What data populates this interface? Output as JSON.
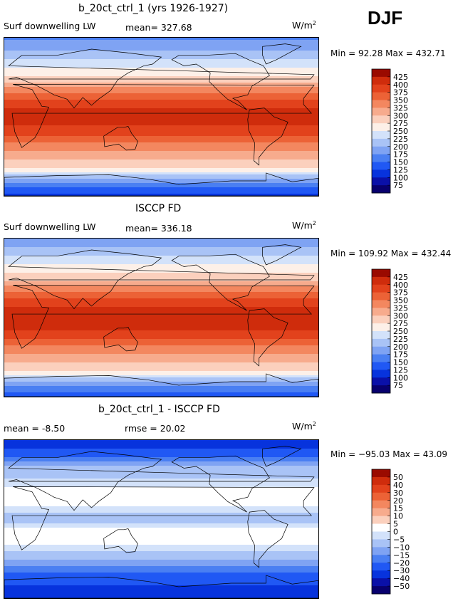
{
  "season": "DJF",
  "palette": {
    "model": [
      "#08006e",
      "#0a10a8",
      "#0733dd",
      "#2058f4",
      "#4a7ff2",
      "#7fa3f3",
      "#a9c3f6",
      "#d3e2fa",
      "#fdf0e8",
      "#fbd0bd",
      "#f7ab8d",
      "#f3875f",
      "#ec6236",
      "#e2421c",
      "#cf2c0c",
      "#9a0a00"
    ],
    "diff": [
      "#08006e",
      "#0a10a8",
      "#0733dd",
      "#2058f4",
      "#4a7ff2",
      "#7fa3f3",
      "#a9c3f6",
      "#d3e2fa",
      "#ffffff",
      "#fbd0bd",
      "#f7ab8d",
      "#f3875f",
      "#ec6236",
      "#e2421c",
      "#cf2c0c",
      "#9a0a00"
    ]
  },
  "panels": [
    {
      "title": "b_20ct_ctrl_1 (yrs 1926-1927)",
      "variable": "Surf downwelling LW",
      "stat_text": "mean=  327.68",
      "units": "W/m",
      "units_exp": "2",
      "minmax": "Min =  92.28  Max = 432.71",
      "colorbar_labels": [
        "425",
        "400",
        "375",
        "350",
        "325",
        "300",
        "275",
        "250",
        "225",
        "200",
        "175",
        "150",
        "125",
        "100",
        "75"
      ],
      "palette": "model"
    },
    {
      "title": "ISCCP FD",
      "variable": "Surf downwelling LW",
      "stat_text": "mean=  336.18",
      "units": "W/m",
      "units_exp": "2",
      "minmax": "Min = 109.92  Max = 432.44",
      "colorbar_labels": [
        "425",
        "400",
        "375",
        "350",
        "325",
        "300",
        "275",
        "250",
        "225",
        "200",
        "175",
        "150",
        "125",
        "100",
        "75"
      ],
      "palette": "model"
    },
    {
      "title": "b_20ct_ctrl_1 - ISCCP FD",
      "variable": "mean =   -8.50",
      "stat_text": "rmse =   20.02",
      "units": "W/m",
      "units_exp": "2",
      "minmax": "Min = −95.03  Max =  43.09",
      "colorbar_labels": [
        "50",
        "40",
        "30",
        "20",
        "15",
        "10",
        "5",
        "0",
        "−5",
        "−10",
        "−15",
        "−20",
        "−30",
        "−40",
        "−50"
      ],
      "palette": "diff"
    }
  ],
  "chart_data": [
    {
      "type": "heatmap",
      "title": "b_20ct_ctrl_1 (yrs 1926-1927)",
      "subtitle": "Surf downwelling LW",
      "mean": 327.68,
      "min": 92.28,
      "max": 432.71,
      "units": "W/m2",
      "levels": [
        75,
        100,
        125,
        150,
        175,
        200,
        225,
        250,
        275,
        300,
        325,
        350,
        375,
        400,
        425
      ],
      "zonal_profile": {
        "lat": [
          90,
          75,
          60,
          45,
          30,
          15,
          0,
          -15,
          -30,
          -45,
          -60,
          -75,
          -90
        ],
        "value": [
          170,
          200,
          240,
          280,
          340,
          395,
          410,
          395,
          350,
          310,
          270,
          170,
          120
        ]
      }
    },
    {
      "type": "heatmap",
      "title": "ISCCP FD",
      "subtitle": "Surf downwelling LW",
      "mean": 336.18,
      "min": 109.92,
      "max": 432.44,
      "units": "W/m2",
      "levels": [
        75,
        100,
        125,
        150,
        175,
        200,
        225,
        250,
        275,
        300,
        325,
        350,
        375,
        400,
        425
      ],
      "zonal_profile": {
        "lat": [
          90,
          75,
          60,
          45,
          30,
          15,
          0,
          -15,
          -30,
          -45,
          -60,
          -75,
          -90
        ],
        "value": [
          175,
          210,
          250,
          290,
          345,
          395,
          415,
          400,
          355,
          315,
          280,
          190,
          130
        ]
      }
    },
    {
      "type": "heatmap",
      "title": "b_20ct_ctrl_1 - ISCCP FD",
      "mean": -8.5,
      "rmse": 20.02,
      "min": -95.03,
      "max": 43.09,
      "units": "W/m2",
      "levels": [
        -50,
        -40,
        -30,
        -20,
        -15,
        -10,
        -5,
        0,
        5,
        10,
        15,
        20,
        30,
        40,
        50
      ],
      "zonal_profile": {
        "lat": [
          90,
          75,
          60,
          45,
          30,
          15,
          0,
          -15,
          -30,
          -45,
          -60,
          -75,
          -90
        ],
        "value": [
          -40,
          -25,
          -10,
          -5,
          5,
          0,
          -10,
          5,
          0,
          -10,
          -20,
          -30,
          -40
        ]
      }
    }
  ]
}
